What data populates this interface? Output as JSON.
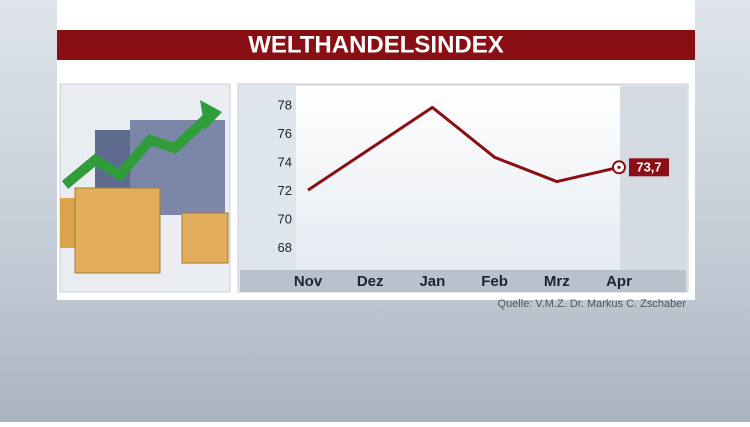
{
  "chart_data": {
    "type": "line",
    "title": "WELTHANDELSINDEX",
    "source": "Quelle: V.M.Z. Dr. Markus C. Zschaber",
    "categories": [
      "Nov",
      "Dez",
      "Jan",
      "Feb",
      "Mrz",
      "Apr"
    ],
    "values": [
      72.1,
      75.0,
      77.9,
      74.4,
      72.7,
      73.7
    ],
    "value_labels": [
      null,
      null,
      null,
      null,
      null,
      "73,7"
    ],
    "color": "#8a0f14",
    "ylim": [
      66.5,
      79.4
    ],
    "yticks": [
      68,
      70,
      72,
      74,
      76,
      78
    ]
  }
}
